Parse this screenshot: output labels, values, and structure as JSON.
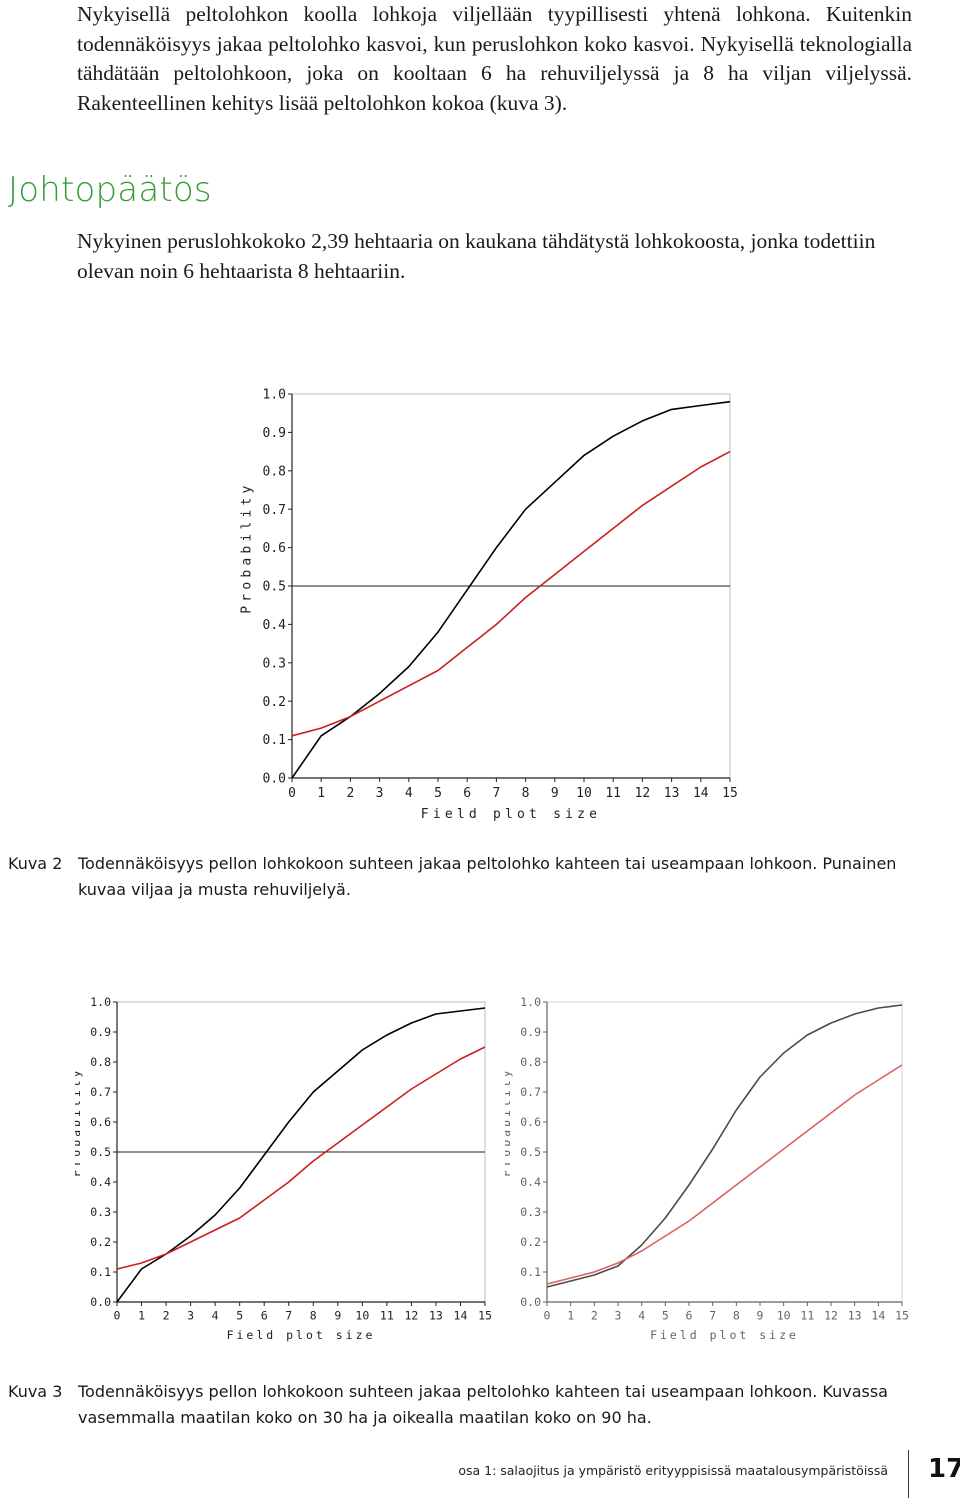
{
  "paragraph1": "Nykyisellä peltolohkon koolla lohkoja viljellään tyypillisesti yhtenä lohkona. Kuitenkin todennäköisyys jakaa peltolohko kasvoi, kun peruslohkon koko kasvoi. Nykyisellä teknologialla tähdätään peltolohkoon, joka on kooltaan 6 ha rehuviljelyssä ja 8 ha viljan viljelyssä. Rakenteellinen kehitys lisää peltolohkon kokoa (kuva 3).",
  "heading": "Johtopäätös",
  "paragraph2": "Nykyinen peruslohkokoko 2,39 hehtaaria on kaukana tähdätystä lohkokoosta, jonka todettiin olevan noin 6 hehtaarista 8 hehtaariin.",
  "figure2": {
    "label": "Kuva 2",
    "caption": "Todennäköisyys pellon lohkokoon suhteen jakaa peltolohko kahteen tai useampaan lohkoon. Punainen kuvaa viljaa ja musta rehuviljelyä."
  },
  "figure3": {
    "label": "Kuva 3",
    "caption": "Todennäköisyys pellon lohkokoon suhteen jakaa peltolohko kahteen tai useampaan lohkoon. Kuvassa vasemmalla maatilan koko on 30 ha ja oikealla maatilan koko on 90 ha."
  },
  "footer": {
    "text": "osa 1: salaojitus ja ympäristö erityyppisissä maatalousympäristöissä",
    "page_number": "17"
  },
  "colors": {
    "heading": "#3a9a3a",
    "red_series": "#cc1f1f",
    "black_series": "#000000"
  },
  "chart_data": [
    {
      "type": "line",
      "xlabel": "Field plot size",
      "ylabel": "Probability",
      "xlim": [
        0,
        15
      ],
      "ylim": [
        0,
        1
      ],
      "x_ticks": [
        "0",
        "1",
        "2",
        "3",
        "4",
        "5",
        "6",
        "7",
        "8",
        "9",
        "10",
        "11",
        "12",
        "13",
        "14",
        "15"
      ],
      "y_ticks": [
        "0.0",
        "0.1",
        "0.2",
        "0.3",
        "0.4",
        "0.5",
        "0.6",
        "0.7",
        "0.8",
        "0.9",
        "1.0"
      ],
      "reference_line_y": 0.5,
      "series": [
        {
          "color": "#000000",
          "x": [
            0,
            1,
            2,
            3,
            4,
            5,
            6,
            7,
            8,
            9,
            10,
            11,
            12,
            13,
            14,
            15
          ],
          "y": [
            0.0,
            0.11,
            0.16,
            0.22,
            0.29,
            0.38,
            0.49,
            0.6,
            0.7,
            0.77,
            0.84,
            0.89,
            0.93,
            0.96,
            0.97,
            0.98
          ]
        },
        {
          "color": "#cc1f1f",
          "x": [
            0,
            1,
            2,
            3,
            4,
            5,
            6,
            7,
            8,
            9,
            10,
            11,
            12,
            13,
            14,
            15
          ],
          "y": [
            0.11,
            0.13,
            0.16,
            0.2,
            0.24,
            0.28,
            0.34,
            0.4,
            0.47,
            0.53,
            0.59,
            0.65,
            0.71,
            0.76,
            0.81,
            0.85
          ]
        }
      ]
    },
    {
      "type": "line",
      "xlabel": "Field plot size",
      "ylabel": "Probability",
      "xlim": [
        0,
        15
      ],
      "ylim": [
        0,
        1
      ],
      "x_ticks": [
        "0",
        "1",
        "2",
        "3",
        "4",
        "5",
        "6",
        "7",
        "8",
        "9",
        "10",
        "11",
        "12",
        "13",
        "14",
        "15"
      ],
      "y_ticks": [
        "0.0",
        "0.1",
        "0.2",
        "0.3",
        "0.4",
        "0.5",
        "0.6",
        "0.7",
        "0.8",
        "0.9",
        "1.0"
      ],
      "reference_line_y": 0.5,
      "series": [
        {
          "color": "#000000",
          "x": [
            0,
            1,
            2,
            3,
            4,
            5,
            6,
            7,
            8,
            9,
            10,
            11,
            12,
            13,
            14,
            15
          ],
          "y": [
            0.0,
            0.11,
            0.16,
            0.22,
            0.29,
            0.38,
            0.49,
            0.6,
            0.7,
            0.77,
            0.84,
            0.89,
            0.93,
            0.96,
            0.97,
            0.98
          ]
        },
        {
          "color": "#cc1f1f",
          "x": [
            0,
            1,
            2,
            3,
            4,
            5,
            6,
            7,
            8,
            9,
            10,
            11,
            12,
            13,
            14,
            15
          ],
          "y": [
            0.11,
            0.13,
            0.16,
            0.2,
            0.24,
            0.28,
            0.34,
            0.4,
            0.47,
            0.53,
            0.59,
            0.65,
            0.71,
            0.76,
            0.81,
            0.85
          ]
        }
      ]
    },
    {
      "type": "line",
      "xlabel": "Field plot size",
      "ylabel": "Probability",
      "xlim": [
        0,
        15
      ],
      "ylim": [
        0,
        1
      ],
      "x_ticks": [
        "0",
        "1",
        "2",
        "3",
        "4",
        "5",
        "6",
        "7",
        "8",
        "9",
        "10",
        "11",
        "12",
        "13",
        "14",
        "15"
      ],
      "y_ticks": [
        "0.0",
        "0.1",
        "0.2",
        "0.3",
        "0.4",
        "0.5",
        "0.6",
        "0.7",
        "0.8",
        "0.9",
        "1.0"
      ],
      "series": [
        {
          "color": "#000000",
          "x": [
            0,
            1,
            2,
            3,
            4,
            5,
            6,
            7,
            8,
            9,
            10,
            11,
            12,
            13,
            14,
            15
          ],
          "y": [
            0.05,
            0.07,
            0.09,
            0.12,
            0.19,
            0.28,
            0.39,
            0.51,
            0.64,
            0.75,
            0.83,
            0.89,
            0.93,
            0.96,
            0.98,
            0.99
          ]
        },
        {
          "color": "#cc1f1f",
          "x": [
            0,
            1,
            2,
            3,
            4,
            5,
            6,
            7,
            8,
            9,
            10,
            11,
            12,
            13,
            14,
            15
          ],
          "y": [
            0.06,
            0.08,
            0.1,
            0.13,
            0.17,
            0.22,
            0.27,
            0.33,
            0.39,
            0.45,
            0.51,
            0.57,
            0.63,
            0.69,
            0.74,
            0.79
          ]
        }
      ]
    }
  ]
}
